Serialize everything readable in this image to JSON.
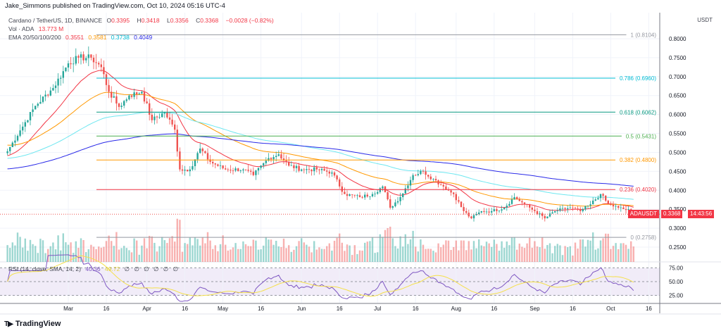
{
  "header": {
    "published": "Jake_Simmons published on TradingView.com, Oct 10, 2024 05:16 UTC-4"
  },
  "legend": {
    "symbol": "Cardano / TetherUS, 1D, BINANCE",
    "o_label": "O",
    "o": "0.3395",
    "h_label": "H",
    "h": "0.3418",
    "l_label": "L",
    "l": "0.3356",
    "c_label": "C",
    "c": "0.3368",
    "change": "−0.0028 (−0.82%)",
    "vol_label": "Vol · ADA",
    "vol": "13.773 M",
    "ema_label": "EMA 20/50/100/200",
    "ema20": "0.3551",
    "ema50": "0.3581",
    "ema100": "0.3738",
    "ema200": "0.4049",
    "rsi_label": "RSI (14, close, SMA, 14, 2)",
    "rsi": "40.36",
    "rsi_sma": "49.72",
    "rsi_na": [
      "∅",
      "∅",
      "∅",
      "∅",
      "∅",
      "∅"
    ]
  },
  "price_axis": {
    "currency": "USDT",
    "symbol_tag": "ADAUSDT",
    "last_price": "0.3368",
    "countdown": "14:43:56"
  },
  "footer": {
    "brand": "TradingView"
  },
  "colors": {
    "up": "#26a69a",
    "down": "#ef5350",
    "ema20": "#f23645",
    "ema50": "#ff9800",
    "ema100": "#6ee7f0",
    "ema200": "#2a2ae8",
    "rsi": "#7e57c2",
    "rsi_sma": "#f5e04a"
  },
  "chart_data": {
    "type": "candlestick",
    "title": "Cardano / TetherUS, 1D, BINANCE",
    "ylim": [
      0.23,
      0.83
    ],
    "y_ticks": [
      "0.8000",
      "0.7500",
      "0.7000",
      "0.6500",
      "0.6000",
      "0.5500",
      "0.5000",
      "0.4500",
      "0.4000",
      "0.3500",
      "0.3000",
      "0.2500"
    ],
    "x_ticks": [
      "Mar",
      "16",
      "Apr",
      "16",
      "May",
      "16",
      "Jun",
      "16",
      "Jul",
      "16",
      "Aug",
      "16",
      "Sep",
      "16",
      "Oct",
      "16"
    ],
    "rsi_ticks": [
      "75.00",
      "50.00",
      "25.00"
    ],
    "closes": [
      {
        "date": "2024-02-06",
        "close": 0.503
      },
      {
        "date": "2024-02-11",
        "close": 0.558
      },
      {
        "date": "2024-02-17",
        "close": 0.623
      },
      {
        "date": "2024-02-24",
        "close": 0.67
      },
      {
        "date": "2024-03-01",
        "close": 0.735
      },
      {
        "date": "2024-03-05",
        "close": 0.75
      },
      {
        "date": "2024-03-10",
        "close": 0.75
      },
      {
        "date": "2024-03-14",
        "close": 0.725
      },
      {
        "date": "2024-03-17",
        "close": 0.66
      },
      {
        "date": "2024-03-21",
        "close": 0.62
      },
      {
        "date": "2024-03-25",
        "close": 0.65
      },
      {
        "date": "2024-03-30",
        "close": 0.66
      },
      {
        "date": "2024-04-03",
        "close": 0.585
      },
      {
        "date": "2024-04-08",
        "close": 0.605
      },
      {
        "date": "2024-04-12",
        "close": 0.56
      },
      {
        "date": "2024-04-14",
        "close": 0.455
      },
      {
        "date": "2024-04-18",
        "close": 0.455
      },
      {
        "date": "2024-04-22",
        "close": 0.51
      },
      {
        "date": "2024-04-26",
        "close": 0.475
      },
      {
        "date": "2024-05-02",
        "close": 0.455
      },
      {
        "date": "2024-05-09",
        "close": 0.455
      },
      {
        "date": "2024-05-13",
        "close": 0.44
      },
      {
        "date": "2024-05-19",
        "close": 0.485
      },
      {
        "date": "2024-05-23",
        "close": 0.495
      },
      {
        "date": "2024-05-27",
        "close": 0.465
      },
      {
        "date": "2024-06-01",
        "close": 0.455
      },
      {
        "date": "2024-06-07",
        "close": 0.455
      },
      {
        "date": "2024-06-13",
        "close": 0.447
      },
      {
        "date": "2024-06-18",
        "close": 0.39
      },
      {
        "date": "2024-06-24",
        "close": 0.382
      },
      {
        "date": "2024-06-29",
        "close": 0.39
      },
      {
        "date": "2024-07-03",
        "close": 0.41
      },
      {
        "date": "2024-07-06",
        "close": 0.354
      },
      {
        "date": "2024-07-10",
        "close": 0.382
      },
      {
        "date": "2024-07-15",
        "close": 0.44
      },
      {
        "date": "2024-07-19",
        "close": 0.45
      },
      {
        "date": "2024-07-23",
        "close": 0.43
      },
      {
        "date": "2024-07-27",
        "close": 0.41
      },
      {
        "date": "2024-07-31",
        "close": 0.39
      },
      {
        "date": "2024-08-04",
        "close": 0.345
      },
      {
        "date": "2024-08-07",
        "close": 0.326
      },
      {
        "date": "2024-08-11",
        "close": 0.345
      },
      {
        "date": "2024-08-15",
        "close": 0.345
      },
      {
        "date": "2024-08-20",
        "close": 0.354
      },
      {
        "date": "2024-08-24",
        "close": 0.382
      },
      {
        "date": "2024-08-28",
        "close": 0.363
      },
      {
        "date": "2024-09-01",
        "close": 0.345
      },
      {
        "date": "2024-09-05",
        "close": 0.326
      },
      {
        "date": "2024-09-09",
        "close": 0.345
      },
      {
        "date": "2024-09-15",
        "close": 0.354
      },
      {
        "date": "2024-09-19",
        "close": 0.345
      },
      {
        "date": "2024-09-23",
        "close": 0.363
      },
      {
        "date": "2024-09-27",
        "close": 0.39
      },
      {
        "date": "2024-09-30",
        "close": 0.363
      },
      {
        "date": "2024-10-04",
        "close": 0.354
      },
      {
        "date": "2024-10-09",
        "close": 0.345
      },
      {
        "date": "2024-10-10",
        "close": 0.3368
      }
    ],
    "fib_levels": [
      {
        "ratio": "1",
        "price": 0.8104,
        "label": "1 (0.8104)",
        "color": "#9598a1"
      },
      {
        "ratio": "0.786",
        "price": 0.696,
        "label": "0.786 (0.6960)",
        "color": "#00bcd4"
      },
      {
        "ratio": "0.618",
        "price": 0.6062,
        "label": "0.618 (0.6062)",
        "color": "#089981"
      },
      {
        "ratio": "0.5",
        "price": 0.5431,
        "label": "0.5 (0.5431)",
        "color": "#4caf50"
      },
      {
        "ratio": "0.382",
        "price": 0.48,
        "label": "0.382 (0.4800)",
        "color": "#ff9800"
      },
      {
        "ratio": "0.236",
        "price": 0.402,
        "label": "0.236 (0.4020)",
        "color": "#f23645"
      },
      {
        "ratio": "0",
        "price": 0.2758,
        "label": "0 (0.2758)",
        "color": "#9598a1"
      }
    ],
    "grid": true
  }
}
